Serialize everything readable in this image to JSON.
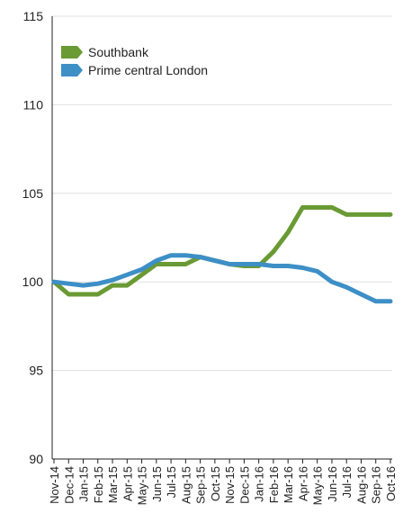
{
  "chart_data": {
    "type": "line",
    "title": "",
    "xlabel": "",
    "ylabel": "",
    "ylim": [
      90,
      115
    ],
    "yticks": [
      90,
      95,
      100,
      105,
      110,
      115
    ],
    "grid": true,
    "legend_position": "top-left",
    "categories": [
      "Nov-14",
      "Dec-14",
      "Jan-15",
      "Feb-15",
      "Mar-15",
      "Apr-15",
      "May-15",
      "Jun-15",
      "Jul-15",
      "Aug-15",
      "Sep-15",
      "Oct-15",
      "Nov-15",
      "Dec-15",
      "Jan-16",
      "Feb-16",
      "Mar-16",
      "Apr-16",
      "May-16",
      "Jun-16",
      "Jul-16",
      "Aug-16",
      "Sep-16",
      "Oct-16"
    ],
    "series": [
      {
        "name": "Southbank",
        "color": "#6a9a34",
        "values": [
          100.0,
          99.3,
          99.3,
          99.3,
          99.8,
          99.8,
          100.4,
          101.0,
          101.0,
          101.0,
          101.4,
          101.2,
          101.0,
          100.9,
          100.9,
          101.7,
          102.8,
          104.2,
          104.2,
          104.2,
          103.8,
          103.8,
          103.8,
          103.8
        ]
      },
      {
        "name": "Prime central London",
        "color": "#3d8fc6",
        "values": [
          100.0,
          99.9,
          99.8,
          99.9,
          100.1,
          100.4,
          100.7,
          101.2,
          101.5,
          101.5,
          101.4,
          101.2,
          101.0,
          101.0,
          101.0,
          100.9,
          100.9,
          100.8,
          100.6,
          100.0,
          99.7,
          99.3,
          98.9,
          98.9
        ]
      }
    ]
  }
}
